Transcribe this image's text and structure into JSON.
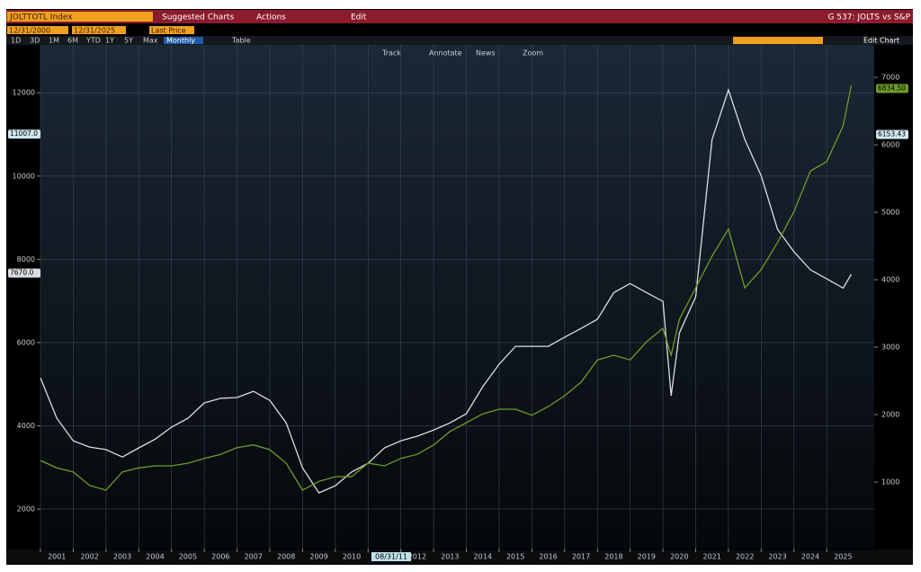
{
  "header": {
    "security": "JOLTTOTL Index",
    "menus": [
      "Suggested Charts",
      "Actions",
      "Edit"
    ],
    "chart_name": "G 537: JOLTS vs S&P"
  },
  "toolbar": {
    "start_date": "12/31/2000",
    "end_date": "12/31/2025",
    "field": "Last Price",
    "ranges": [
      "1D",
      "3D",
      "1M",
      "6M",
      "YTD",
      "1Y",
      "5Y",
      "Max"
    ],
    "period": "Monthly",
    "table": "Table",
    "edit_chart": "Edit Chart",
    "tools": [
      "Track",
      "Annotate",
      "News",
      "Zoom"
    ]
  },
  "chart_data": {
    "type": "line",
    "grid": true,
    "background": "#1b2836",
    "x": [
      2001,
      2001.5,
      2002,
      2002.5,
      2003,
      2003.5,
      2004,
      2004.5,
      2005,
      2005.5,
      2006,
      2006.5,
      2007,
      2007.5,
      2008,
      2008.5,
      2009,
      2009.5,
      2010,
      2010.5,
      2011,
      2011.5,
      2012,
      2012.5,
      2013,
      2013.5,
      2014,
      2014.5,
      2015,
      2015.5,
      2016,
      2016.5,
      2017,
      2017.5,
      2018,
      2018.5,
      2019,
      2019.5,
      2020,
      2020.25,
      2020.5,
      2021,
      2021.5,
      2022,
      2022.5,
      2023,
      2023.5,
      2024,
      2024.5,
      2025,
      2025.5,
      2025.75
    ],
    "series": [
      {
        "color": "#d9dee3",
        "values": [
          5150,
          4180,
          3640,
          3490,
          3430,
          3250,
          3470,
          3680,
          3970,
          4180,
          4550,
          4660,
          4680,
          4830,
          4610,
          4070,
          2990,
          2390,
          2560,
          2890,
          3100,
          3470,
          3640,
          3750,
          3900,
          4070,
          4290,
          4940,
          5480,
          5910,
          5910,
          5910,
          6130,
          6340,
          6560,
          7200,
          7420,
          7200,
          6990,
          4720,
          6230,
          7100,
          10880,
          12070,
          10880,
          10010,
          8720,
          8180,
          7750,
          7530,
          7310,
          7640
        ]
      },
      {
        "color": "#6f9b2b",
        "axis": "y2",
        "values": [
          1320,
          1210,
          1150,
          950,
          880,
          1150,
          1210,
          1240,
          1240,
          1280,
          1350,
          1410,
          1510,
          1550,
          1480,
          1280,
          880,
          1010,
          1080,
          1080,
          1280,
          1240,
          1350,
          1410,
          1550,
          1750,
          1880,
          2010,
          2080,
          2080,
          1990,
          2120,
          2280,
          2480,
          2810,
          2880,
          2810,
          3080,
          3280,
          2880,
          3410,
          3880,
          4350,
          4750,
          3880,
          4150,
          4550,
          5010,
          5610,
          5750,
          6280,
          6880
        ]
      }
    ],
    "xlim": [
      2001,
      2026.45
    ],
    "xticks": [
      2001,
      2002,
      2003,
      2004,
      2005,
      2006,
      2007,
      2008,
      2009,
      2010,
      2011,
      2012,
      2013,
      2014,
      2015,
      2016,
      2017,
      2018,
      2019,
      2020,
      2021,
      2022,
      2023,
      2024,
      2025
    ],
    "ylim": [
      1050,
      13150
    ],
    "yticks": [
      2000,
      4000,
      6000,
      8000,
      10000,
      12000
    ],
    "y2lim": [
      13,
      7480
    ],
    "y2ticks": [
      1000,
      2000,
      3000,
      4000,
      5000,
      6000,
      7000
    ],
    "markers": [
      {
        "label": "11007.0",
        "value": 11007,
        "axis": "y",
        "color": "#cfe8ee"
      },
      {
        "label": "7670.0",
        "value": 7670,
        "axis": "y",
        "color": "#d9dee3"
      },
      {
        "label": "6153.43",
        "value": 6153.43,
        "axis": "y2",
        "color": "#cfe8ee"
      },
      {
        "label": "6834.50",
        "value": 6834.5,
        "axis": "y2",
        "color": "#6f9b2b"
      }
    ],
    "cursor_label": "08/31/11"
  }
}
